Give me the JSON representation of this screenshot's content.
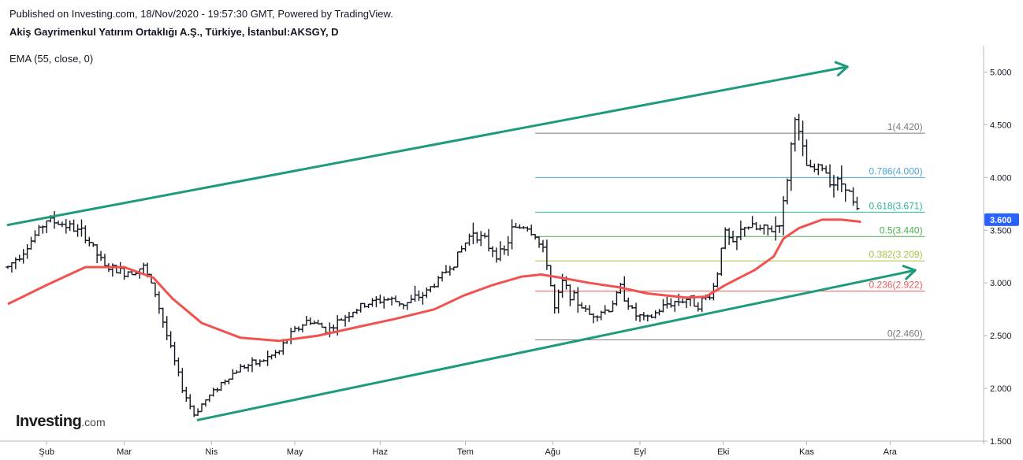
{
  "header": {
    "published": "Published on Investing.com, 18/Nov/2020 - 19:57:30 GMT, Powered by TradingView.",
    "symbol": "Akiş Gayrimenkul Yatırım Ortaklığı A.Ş., Türkiye, İstanbul:AKSGY, D",
    "indicator": "EMA (55, close, 0)"
  },
  "logo": {
    "brand": "Investing",
    "suffix": ".com"
  },
  "colors": {
    "price_bar": "#131722",
    "ema": "#f0524f",
    "trend": "#1e9a7c",
    "axis": "#b2b5be",
    "last_price_bg": "#2962ff"
  },
  "chart_data": {
    "type": "ohlc-bar",
    "title": "Akiş Gayrimenkul Yatırım Ortaklığı A.Ş., Türkiye, İstanbul:AKSGY, D",
    "ylim": [
      1.5,
      5.25
    ],
    "y_ticks": [
      "1.500",
      "2.000",
      "2.500",
      "3.000",
      "3.500",
      "4.000",
      "4.500",
      "5.000"
    ],
    "x_range": [
      0,
      50
    ],
    "x_ticks": [
      {
        "label": "Şub",
        "x": 2
      },
      {
        "label": "Mar",
        "x": 6
      },
      {
        "label": "Nis",
        "x": 10.5
      },
      {
        "label": "May",
        "x": 14.8
      },
      {
        "label": "Haz",
        "x": 19.2
      },
      {
        "label": "Tem",
        "x": 23.6
      },
      {
        "label": "Ağu",
        "x": 28.1
      },
      {
        "label": "Eyl",
        "x": 32.6
      },
      {
        "label": "Eki",
        "x": 36.9
      },
      {
        "label": "Kas",
        "x": 41.2
      },
      {
        "label": "Ara",
        "x": 45.5
      }
    ],
    "price_path": [
      [
        0,
        3.15
      ],
      [
        1,
        3.35
      ],
      [
        2,
        3.6
      ],
      [
        3,
        3.55
      ],
      [
        4,
        3.45
      ],
      [
        5,
        3.15
      ],
      [
        6,
        3.1
      ],
      [
        7,
        3.15
      ],
      [
        7.6,
        2.9
      ],
      [
        8.2,
        2.5
      ],
      [
        9,
        2.0
      ],
      [
        9.6,
        1.75
      ],
      [
        10,
        1.85
      ],
      [
        11,
        2.05
      ],
      [
        12,
        2.2
      ],
      [
        13,
        2.25
      ],
      [
        14,
        2.35
      ],
      [
        14.5,
        2.5
      ],
      [
        15.5,
        2.65
      ],
      [
        16.5,
        2.55
      ],
      [
        17.5,
        2.7
      ],
      [
        18.5,
        2.8
      ],
      [
        19.5,
        2.85
      ],
      [
        20.5,
        2.8
      ],
      [
        21.5,
        2.9
      ],
      [
        22.3,
        3.05
      ],
      [
        23,
        3.2
      ],
      [
        24,
        3.5
      ],
      [
        24.8,
        3.35
      ],
      [
        25.5,
        3.25
      ],
      [
        26,
        3.5
      ],
      [
        26.7,
        3.55
      ],
      [
        27.2,
        3.45
      ],
      [
        27.8,
        3.2
      ],
      [
        28.2,
        2.75
      ],
      [
        28.6,
        3.0
      ],
      [
        29.2,
        2.85
      ],
      [
        30,
        2.7
      ],
      [
        31,
        2.75
      ],
      [
        31.6,
        2.95
      ],
      [
        32.3,
        2.7
      ],
      [
        33,
        2.65
      ],
      [
        34,
        2.8
      ],
      [
        35,
        2.85
      ],
      [
        35.6,
        2.8
      ],
      [
        36.3,
        2.9
      ],
      [
        36.6,
        3.1
      ],
      [
        36.9,
        3.5
      ],
      [
        37.4,
        3.35
      ],
      [
        38,
        3.55
      ],
      [
        38.7,
        3.5
      ],
      [
        39.4,
        3.5
      ],
      [
        39.9,
        3.6
      ],
      [
        40.2,
        4.0
      ],
      [
        40.6,
        4.6
      ],
      [
        40.9,
        4.3
      ],
      [
        41.3,
        4.05
      ],
      [
        42,
        4.1
      ],
      [
        42.6,
        3.95
      ],
      [
        43.2,
        3.95
      ],
      [
        43.6,
        3.75
      ],
      [
        44.0,
        3.6
      ]
    ],
    "ema_series": {
      "name": "EMA (55, close, 0)",
      "points": [
        [
          0,
          2.8
        ],
        [
          2,
          2.98
        ],
        [
          4,
          3.15
        ],
        [
          6,
          3.15
        ],
        [
          7.5,
          3.05
        ],
        [
          8.5,
          2.85
        ],
        [
          10,
          2.62
        ],
        [
          12,
          2.48
        ],
        [
          14,
          2.45
        ],
        [
          16,
          2.5
        ],
        [
          18,
          2.58
        ],
        [
          20,
          2.66
        ],
        [
          22,
          2.75
        ],
        [
          23.5,
          2.88
        ],
        [
          25,
          2.98
        ],
        [
          26.5,
          3.06
        ],
        [
          27.5,
          3.08
        ],
        [
          28.5,
          3.05
        ],
        [
          30,
          3.0
        ],
        [
          31.5,
          2.96
        ],
        [
          33,
          2.9
        ],
        [
          35,
          2.86
        ],
        [
          36,
          2.87
        ],
        [
          37,
          2.98
        ],
        [
          38.5,
          3.12
        ],
        [
          39.5,
          3.25
        ],
        [
          40,
          3.42
        ],
        [
          40.8,
          3.52
        ],
        [
          42,
          3.6
        ],
        [
          43,
          3.6
        ],
        [
          44,
          3.58
        ]
      ]
    },
    "last_price": "3.600",
    "fibonacci": {
      "x_start": 27.2,
      "x_end": 47.3,
      "levels": [
        {
          "label": "1(4.420)",
          "value": 4.42,
          "color": "#787b86"
        },
        {
          "label": "0.786(4.000)",
          "value": 4.0,
          "color": "#4ca7d8"
        },
        {
          "label": "0.618(3.671)",
          "value": 3.671,
          "color": "#2bb59a"
        },
        {
          "label": "0.5(3.440)",
          "value": 3.44,
          "color": "#4caf50"
        },
        {
          "label": "0.382(3.209)",
          "value": 3.209,
          "color": "#a6c244"
        },
        {
          "label": "0.236(2.922)",
          "value": 2.922,
          "color": "#e85b5b"
        },
        {
          "label": "0(2.460)",
          "value": 2.46,
          "color": "#787b86"
        }
      ]
    },
    "trend_lines": [
      {
        "from": [
          0,
          3.55
        ],
        "to": [
          43.3,
          5.05
        ]
      },
      {
        "from": [
          9.8,
          1.7
        ],
        "to": [
          46.8,
          3.12
        ]
      }
    ]
  }
}
